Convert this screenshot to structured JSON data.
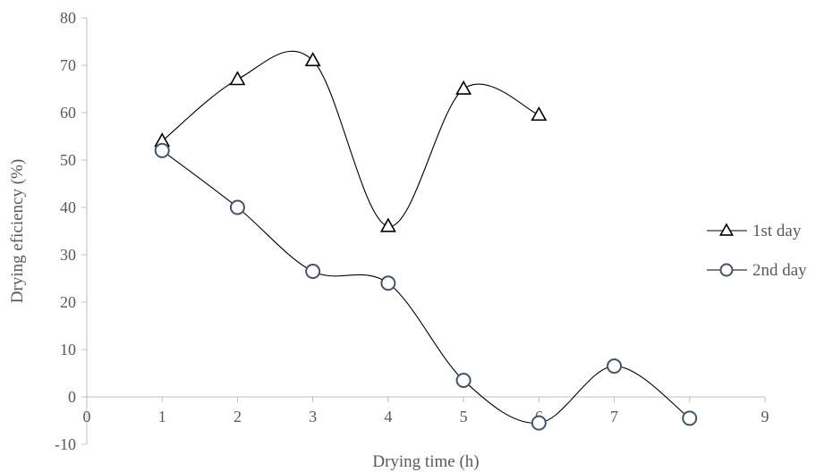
{
  "chart_data": {
    "type": "scatter",
    "xlabel": "Drying time (h)",
    "ylabel": "Drying eficiency (%)",
    "xlim": [
      0,
      9
    ],
    "ylim": [
      -10,
      80
    ],
    "x_ticks": [
      "0",
      "1",
      "2",
      "3",
      "4",
      "5",
      "6",
      "7",
      "8",
      "9"
    ],
    "y_ticks": [
      "-10",
      "0",
      "10",
      "20",
      "30",
      "40",
      "50",
      "60",
      "70",
      "80"
    ],
    "grid": false,
    "smooth_lines": true,
    "legend_position": "right",
    "series": [
      {
        "name": "1st day",
        "marker": "triangle",
        "x": [
          1,
          2,
          3,
          4,
          5,
          6
        ],
        "y": [
          54,
          67,
          71,
          36,
          65,
          59.5
        ]
      },
      {
        "name": "2nd day",
        "marker": "circle",
        "x": [
          1,
          2,
          3,
          4,
          5,
          6,
          7,
          8
        ],
        "y": [
          52,
          40,
          26.5,
          24,
          3.5,
          -5.5,
          6.5,
          -4.5
        ]
      }
    ],
    "colors": {
      "line": "#000000",
      "triangle_marker": "#000000",
      "circle_marker": "#44546a",
      "axis": "#bfbfbf",
      "text": "#595959"
    }
  }
}
